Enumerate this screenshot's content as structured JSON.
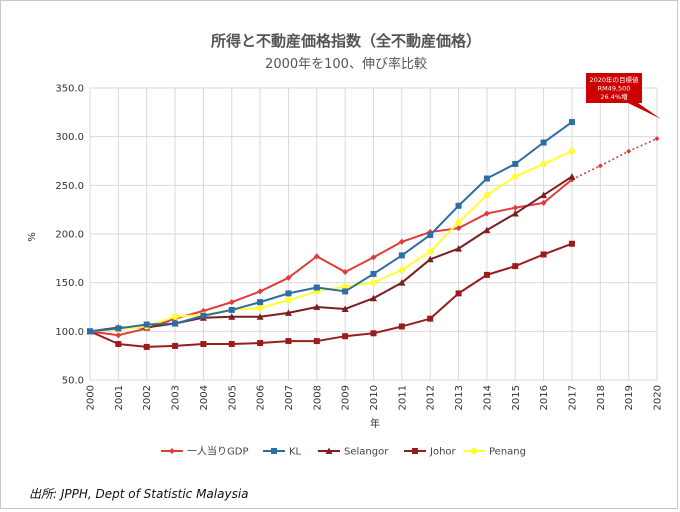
{
  "chart_data": {
    "type": "line",
    "title": "所得と不動産価格指数（全不動産価格）",
    "subtitle": "2000年を100、伸び率比較",
    "xlabel": "年",
    "ylabel": "%",
    "ylim": [
      50,
      350
    ],
    "yticks": [
      "50.0",
      "100.0",
      "150.0",
      "200.0",
      "250.0",
      "300.0",
      "350.0"
    ],
    "x": [
      "2000",
      "2001",
      "2002",
      "2003",
      "2004",
      "2005",
      "2006",
      "2007",
      "2008",
      "2009",
      "2010",
      "2011",
      "2012",
      "2013",
      "2014",
      "2015",
      "2016",
      "2017",
      "2018",
      "2019",
      "2020"
    ],
    "grid": true,
    "legend_position": "bottom",
    "series": [
      {
        "name": "一人当りGDP",
        "color": "#e03c3c",
        "marker": "diamond",
        "values": [
          100,
          96,
          103,
          113,
          121,
          130,
          141,
          155,
          177,
          161,
          176,
          192,
          202,
          206,
          221,
          227,
          232,
          256,
          null,
          null,
          null
        ]
      },
      {
        "name": "KL",
        "color": "#2e6da4",
        "marker": "square",
        "values": [
          100,
          103,
          107,
          108,
          116,
          122,
          130,
          139,
          145,
          141,
          159,
          178,
          199,
          229,
          257,
          272,
          294,
          315,
          null,
          null,
          null
        ]
      },
      {
        "name": "Selangor",
        "color": "#7b1f1f",
        "marker": "triangle",
        "values": [
          100,
          104,
          104,
          108,
          114,
          115,
          115,
          119,
          125,
          123,
          134,
          150,
          174,
          185,
          204,
          221,
          240,
          259,
          null,
          null,
          null
        ]
      },
      {
        "name": "Johor",
        "color": "#9b1c1c",
        "marker": "square",
        "values": [
          100,
          87,
          84,
          85,
          87,
          87,
          88,
          90,
          90,
          95,
          98,
          105,
          113,
          139,
          158,
          167,
          179,
          190,
          null,
          null,
          null
        ]
      },
      {
        "name": "Penang",
        "color": "#ffff33",
        "marker": "circle",
        "values": [
          100,
          102,
          105,
          115,
          117,
          122,
          124,
          132,
          141,
          146,
          150,
          163,
          182,
          212,
          240,
          259,
          272,
          285,
          null,
          null,
          null
        ]
      }
    ],
    "projection": {
      "series": "一人当りGDP",
      "color": "#e03c3c",
      "style": "dotted",
      "x": [
        "2017",
        "2018",
        "2019",
        "2020"
      ],
      "values": [
        256,
        270,
        285,
        298
      ]
    },
    "annotations": [
      {
        "lines": [
          "2020年の目標値",
          "RM49,500",
          "26.4%増"
        ],
        "color": "#cc0000",
        "target": "2020"
      }
    ]
  },
  "source": "出所: JPPH, Dept of Statistic Malaysia"
}
